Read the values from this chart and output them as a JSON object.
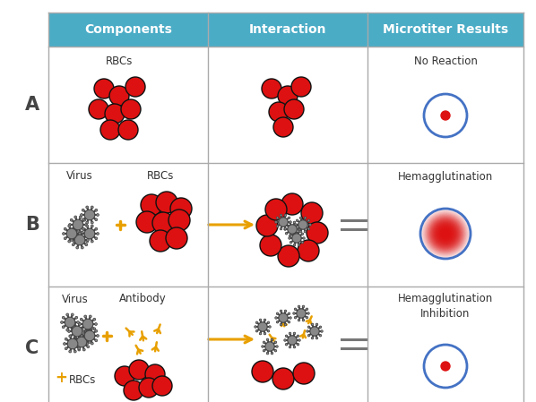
{
  "header_color": "#4bacc6",
  "header_text_color": "#ffffff",
  "header_labels": [
    "Components",
    "Interaction",
    "Microtiter Results"
  ],
  "row_labels": [
    "A",
    "B",
    "C"
  ],
  "row_label_color": "#444444",
  "grid_color": "#aaaaaa",
  "rbc_color": "#dd1111",
  "rbc_edge_color": "#111111",
  "virus_color": "#888888",
  "virus_edge_color": "#444444",
  "antibody_color": "#e8a000",
  "arrow_color": "#e8a000",
  "plus_color": "#e8a000",
  "equals_color": "#777777",
  "no_reaction_label": "No Reaction",
  "hemagglutination_label": "Hemagglutination",
  "inhibition_label": "Hemagglutination\nInhibition",
  "microtiter_circle_color": "#4472c4",
  "bg_color": "#ffffff",
  "header_fontsize": 10,
  "label_fontsize": 8.5,
  "row_label_fontsize": 15
}
